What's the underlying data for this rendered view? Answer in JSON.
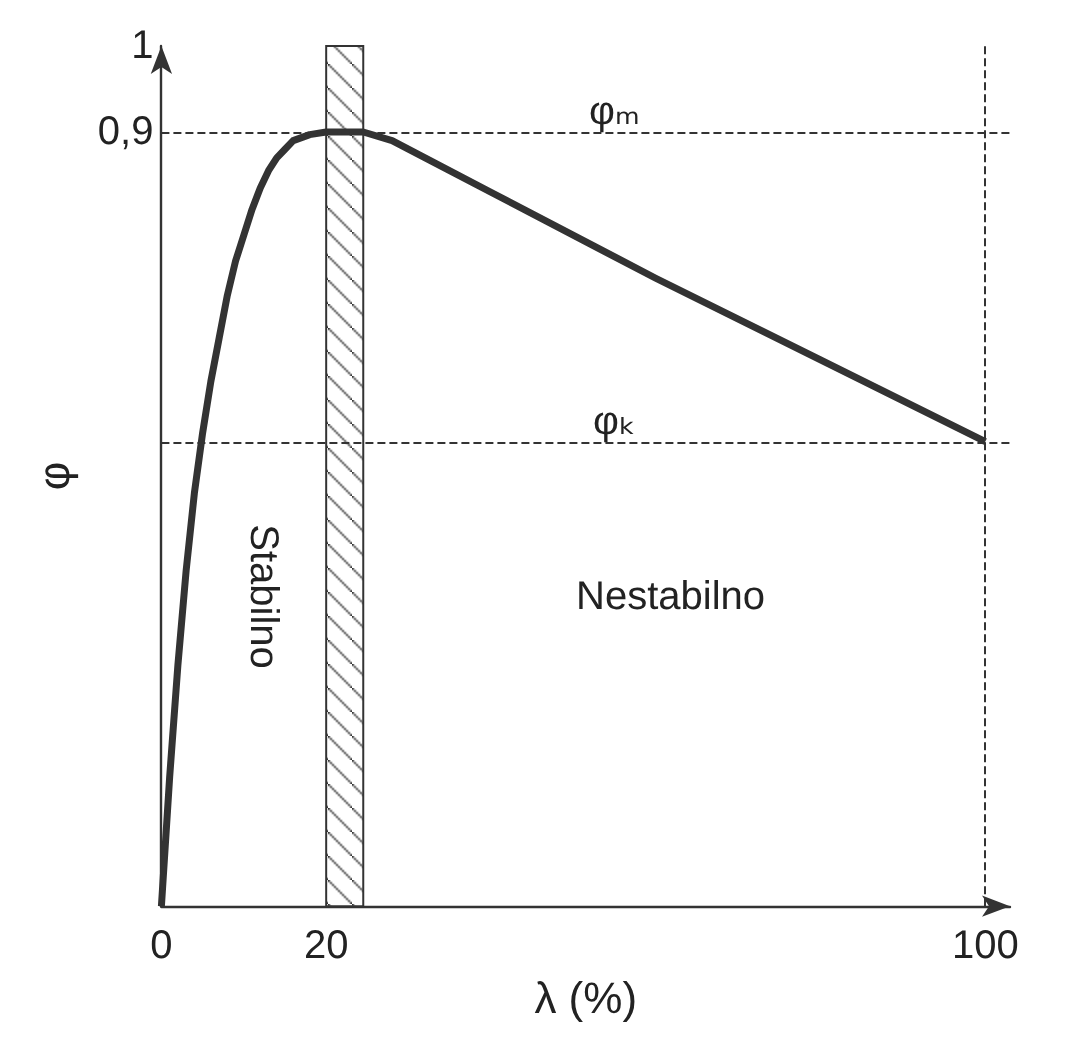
{
  "chart_data": {
    "type": "line",
    "xlabel": "λ (%)",
    "ylabel": "φ",
    "x": [
      0,
      1,
      2,
      3,
      4,
      5,
      6,
      7,
      8,
      9,
      10,
      11,
      12,
      13,
      14,
      15,
      16,
      18,
      20,
      24.5,
      28,
      40,
      60,
      80,
      100
    ],
    "series": [
      {
        "color": "#333333",
        "values": [
          0,
          0.15,
          0.28,
          0.39,
          0.48,
          0.55,
          0.61,
          0.66,
          0.71,
          0.75,
          0.78,
          0.81,
          0.835,
          0.855,
          0.87,
          0.88,
          0.89,
          0.897,
          0.9,
          0.9,
          0.89,
          0.83,
          0.73,
          0.635,
          0.54
        ]
      }
    ],
    "xlim": [
      0,
      103
    ],
    "xticks": [
      0,
      20,
      100
    ],
    "ylim": [
      0,
      1
    ],
    "yticks": [
      {
        "value": 0.9,
        "label": "0,9"
      },
      1
    ],
    "ref_lines": [
      {
        "axis": "y",
        "value": 0.9,
        "line_style": "dashed",
        "color": "#333333"
      },
      {
        "axis": "y",
        "value": 0.54,
        "line_style": "dashed",
        "color": "#333333"
      },
      {
        "axis": "x",
        "value": 100,
        "line_style": "dashed",
        "color": "#333333"
      }
    ],
    "bands": [
      {
        "axis": "x",
        "from": 20,
        "to": 24.5,
        "color": "#333333"
      }
    ],
    "annotations": [
      {
        "text": "φₘ",
        "x": 55,
        "y": 0.9
      },
      {
        "text": "φₖ",
        "x": 55,
        "y": 0.54
      },
      "Stabilno",
      "Nestabilno"
    ],
    "grid": false,
    "marker": "none",
    "line_style": "solid"
  }
}
